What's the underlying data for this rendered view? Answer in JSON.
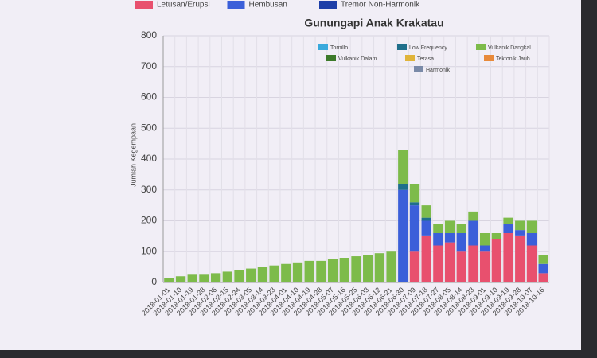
{
  "chart_data": {
    "type": "stacked_bar",
    "title": "Gunungapi Anak Krakatau",
    "y_label": "Jumlah Kegempaan",
    "categories": [
      "2018-01-01",
      "2018-01-10",
      "2018-01-19",
      "2018-01-28",
      "2018-02-06",
      "2018-02-15",
      "2018-02-24",
      "2018-03-05",
      "2018-03-14",
      "2018-03-23",
      "2018-04-01",
      "2018-04-10",
      "2018-04-19",
      "2018-04-28",
      "2018-05-07",
      "2018-05-16",
      "2018-05-25",
      "2018-06-03",
      "2018-06-12",
      "2018-06-21",
      "2018-06-30",
      "2018-07-09",
      "2018-07-18",
      "2018-07-27",
      "2018-08-05",
      "2018-08-14",
      "2018-08-23",
      "2018-09-01",
      "2018-09-10",
      "2018-09-19",
      "2018-09-28",
      "2018-10-07",
      "2018-10-16"
    ],
    "series": [
      {
        "name": "Letusan/Erupsi",
        "color": "#e8506e",
        "values": [
          0,
          0,
          0,
          0,
          0,
          0,
          0,
          0,
          0,
          0,
          0,
          0,
          0,
          0,
          0,
          0,
          0,
          0,
          0,
          0,
          0,
          100,
          150,
          120,
          130,
          100,
          120,
          100,
          140,
          160,
          150,
          120,
          30
        ]
      },
      {
        "name": "Hembusan",
        "color": "#3b5fd9",
        "values": [
          0,
          0,
          0,
          0,
          0,
          0,
          0,
          0,
          0,
          0,
          0,
          0,
          0,
          0,
          0,
          0,
          0,
          0,
          0,
          0,
          300,
          150,
          50,
          40,
          30,
          60,
          80,
          20,
          0,
          30,
          20,
          40,
          30
        ]
      },
      {
        "name": "Tremor Non-Harmonik",
        "color": "#1e3fa8",
        "values": [
          0,
          0,
          0,
          0,
          0,
          0,
          0,
          0,
          0,
          0,
          0,
          0,
          0,
          0,
          0,
          0,
          0,
          0,
          0,
          0,
          0,
          0,
          0,
          0,
          0,
          0,
          0,
          0,
          0,
          0,
          0,
          0,
          0
        ]
      },
      {
        "name": "Tornillo",
        "color": "#39a9dc",
        "values": [
          0,
          0,
          0,
          0,
          0,
          0,
          0,
          0,
          0,
          0,
          0,
          0,
          0,
          0,
          0,
          0,
          0,
          0,
          0,
          0,
          0,
          0,
          0,
          0,
          0,
          0,
          0,
          0,
          0,
          0,
          0,
          0,
          0
        ]
      },
      {
        "name": "Low Frequency",
        "color": "#1f6f8b",
        "values": [
          0,
          0,
          0,
          0,
          0,
          0,
          0,
          0,
          0,
          0,
          0,
          0,
          0,
          0,
          0,
          0,
          0,
          0,
          0,
          0,
          20,
          10,
          10,
          0,
          0,
          0,
          0,
          0,
          0,
          0,
          0,
          0,
          0
        ]
      },
      {
        "name": "Vulkanik Dangkal",
        "color": "#7dbb4a",
        "values": [
          15,
          20,
          25,
          25,
          30,
          35,
          40,
          45,
          50,
          55,
          60,
          65,
          70,
          70,
          75,
          80,
          85,
          90,
          95,
          100,
          110,
          60,
          40,
          30,
          40,
          30,
          30,
          40,
          20,
          20,
          30,
          40,
          30
        ]
      },
      {
        "name": "Vulkanik Dalam",
        "color": "#3c7a2a",
        "values": [
          0,
          0,
          0,
          0,
          0,
          0,
          0,
          0,
          0,
          0,
          0,
          0,
          0,
          0,
          0,
          0,
          0,
          0,
          0,
          0,
          0,
          0,
          0,
          0,
          0,
          0,
          0,
          0,
          0,
          0,
          0,
          0,
          0
        ]
      },
      {
        "name": "Terasa",
        "color": "#e0b43a",
        "values": [
          0,
          0,
          0,
          0,
          0,
          0,
          0,
          0,
          0,
          0,
          0,
          0,
          0,
          0,
          0,
          0,
          0,
          0,
          0,
          0,
          0,
          0,
          0,
          0,
          0,
          0,
          0,
          0,
          0,
          0,
          0,
          0,
          0
        ]
      },
      {
        "name": "Tektonik Jauh",
        "color": "#e88a3a",
        "values": [
          0,
          0,
          0,
          0,
          0,
          0,
          0,
          0,
          0,
          0,
          0,
          0,
          0,
          0,
          0,
          0,
          0,
          0,
          0,
          0,
          0,
          0,
          0,
          0,
          0,
          0,
          0,
          0,
          0,
          0,
          0,
          0,
          0
        ]
      },
      {
        "name": "Harmonik",
        "color": "#7a8aa8",
        "values": [
          0,
          0,
          0,
          0,
          0,
          0,
          0,
          0,
          0,
          0,
          0,
          0,
          0,
          0,
          0,
          0,
          0,
          0,
          0,
          0,
          0,
          0,
          0,
          0,
          0,
          0,
          0,
          0,
          0,
          0,
          0,
          0,
          0
        ]
      }
    ],
    "ylim": [
      0,
      800
    ],
    "yticks": [
      0,
      100,
      200,
      300,
      400,
      500,
      600,
      700,
      800
    ],
    "grid": true
  }
}
